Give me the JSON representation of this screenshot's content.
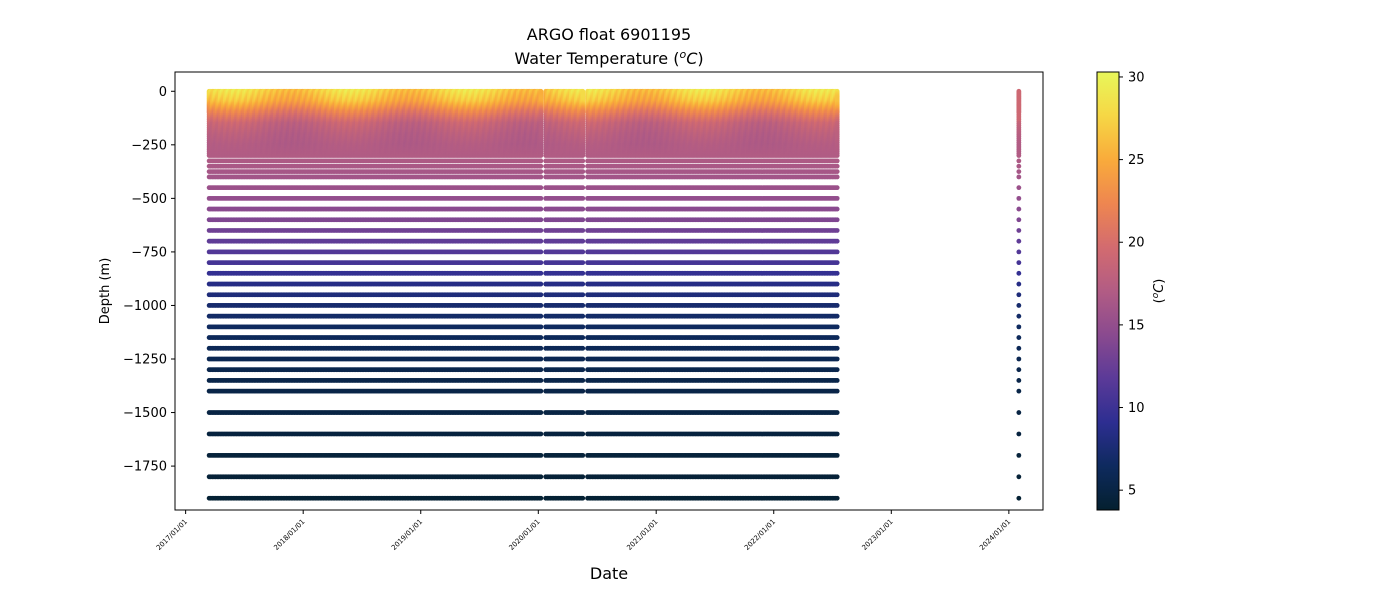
{
  "chart_data": {
    "type": "scatter",
    "title": "ARGO float 6901195",
    "subtitle_main": "Water Temperature (",
    "subtitle_unit_o": "o",
    "subtitle_unit_c": "C",
    "subtitle_end": ")",
    "xlabel": "Date",
    "ylabel": "Depth (m)",
    "colorbar_label_open": "(",
    "colorbar_label_o": "o",
    "colorbar_label_c": "C",
    "colorbar_label_close": ")",
    "x_range": [
      "2016-11-29",
      "2024-04-16"
    ],
    "y_range": [
      -1955,
      90
    ],
    "x_ticks": [
      "2017/01/01",
      "2018/01/01",
      "2019/01/01",
      "2020/01/01",
      "2021/01/01",
      "2022/01/01",
      "2023/01/01",
      "2024/01/01"
    ],
    "y_ticks": [
      0,
      -250,
      -500,
      -750,
      -1000,
      -1250,
      -1500,
      -1750
    ],
    "y_tick_labels": [
      "0",
      "−250",
      "−500",
      "−750",
      "−1000",
      "−1250",
      "−1500",
      "−1750"
    ],
    "colorbar": {
      "colormap": "thermal",
      "range": [
        3.8,
        30.3
      ],
      "ticks": [
        5,
        10,
        15,
        20,
        25,
        30
      ],
      "tick_labels": [
        "5",
        "10",
        "15",
        "20",
        "25",
        "30"
      ],
      "stops": [
        "#04202f",
        "#0e2a5e",
        "#2d2e91",
        "#5b3a98",
        "#8a4a8f",
        "#b25c84",
        "#d36b6f",
        "#ee8650",
        "#f9ab3b",
        "#f6d745",
        "#e8f75a"
      ]
    },
    "grid": false,
    "main_series": {
      "start": "2017-03-15",
      "end": "2022-07-20",
      "interval_days": 5,
      "depth_levels": [
        0,
        -5,
        -10,
        -15,
        -20,
        -25,
        -30,
        -35,
        -40,
        -45,
        -50,
        -55,
        -60,
        -65,
        -70,
        -75,
        -80,
        -85,
        -90,
        -95,
        -100,
        -110,
        -120,
        -130,
        -140,
        -150,
        -160,
        -170,
        -180,
        -190,
        -200,
        -210,
        -220,
        -230,
        -240,
        -250,
        -260,
        -270,
        -280,
        -290,
        -300,
        -325,
        -350,
        -375,
        -400,
        -450,
        -500,
        -550,
        -600,
        -650,
        -700,
        -750,
        -800,
        -850,
        -900,
        -950,
        -1000,
        -1050,
        -1100,
        -1150,
        -1200,
        -1250,
        -1300,
        -1350,
        -1400,
        -1500,
        -1600,
        -1700,
        -1800,
        -1900
      ],
      "gaps": [
        [
          "2020-01-10",
          "2020-01-22"
        ],
        [
          "2020-05-20",
          "2020-06-01"
        ]
      ]
    },
    "late_profile": {
      "date": "2024-02-01",
      "depth_levels": [
        0,
        -5,
        -10,
        -15,
        -20,
        -25,
        -30,
        -35,
        -40,
        -45,
        -50,
        -55,
        -60,
        -65,
        -70,
        -75,
        -80,
        -85,
        -90,
        -95,
        -100,
        -110,
        -120,
        -130,
        -140,
        -150,
        -160,
        -170,
        -180,
        -190,
        -200,
        -210,
        -220,
        -230,
        -240,
        -250,
        -260,
        -270,
        -280,
        -290,
        -300,
        -325,
        -350,
        -375,
        -400,
        -450,
        -500,
        -550,
        -600,
        -650,
        -700,
        -750,
        -800,
        -850,
        -900,
        -950,
        -1000,
        -1050,
        -1100,
        -1150,
        -1200,
        -1250,
        -1300,
        -1350,
        -1400,
        -1500,
        -1600,
        -1700,
        -1800,
        -1900
      ]
    },
    "temperature_profile": {
      "depths": [
        0,
        -50,
        -100,
        -150,
        -200,
        -250,
        -300,
        -400,
        -500,
        -600,
        -700,
        -800,
        -900,
        -1000,
        -1100,
        -1200,
        -1300,
        -1400,
        -1500,
        -1600,
        -1700,
        -1800,
        -1900
      ],
      "temps": [
        27.5,
        25.5,
        21.5,
        18.5,
        17.5,
        17.0,
        17.0,
        16.0,
        15.0,
        13.8,
        12.0,
        10.5,
        8.5,
        7.2,
        6.5,
        6.0,
        5.5,
        5.2,
        5.0,
        4.7,
        4.5,
        4.3,
        4.1
      ]
    }
  }
}
